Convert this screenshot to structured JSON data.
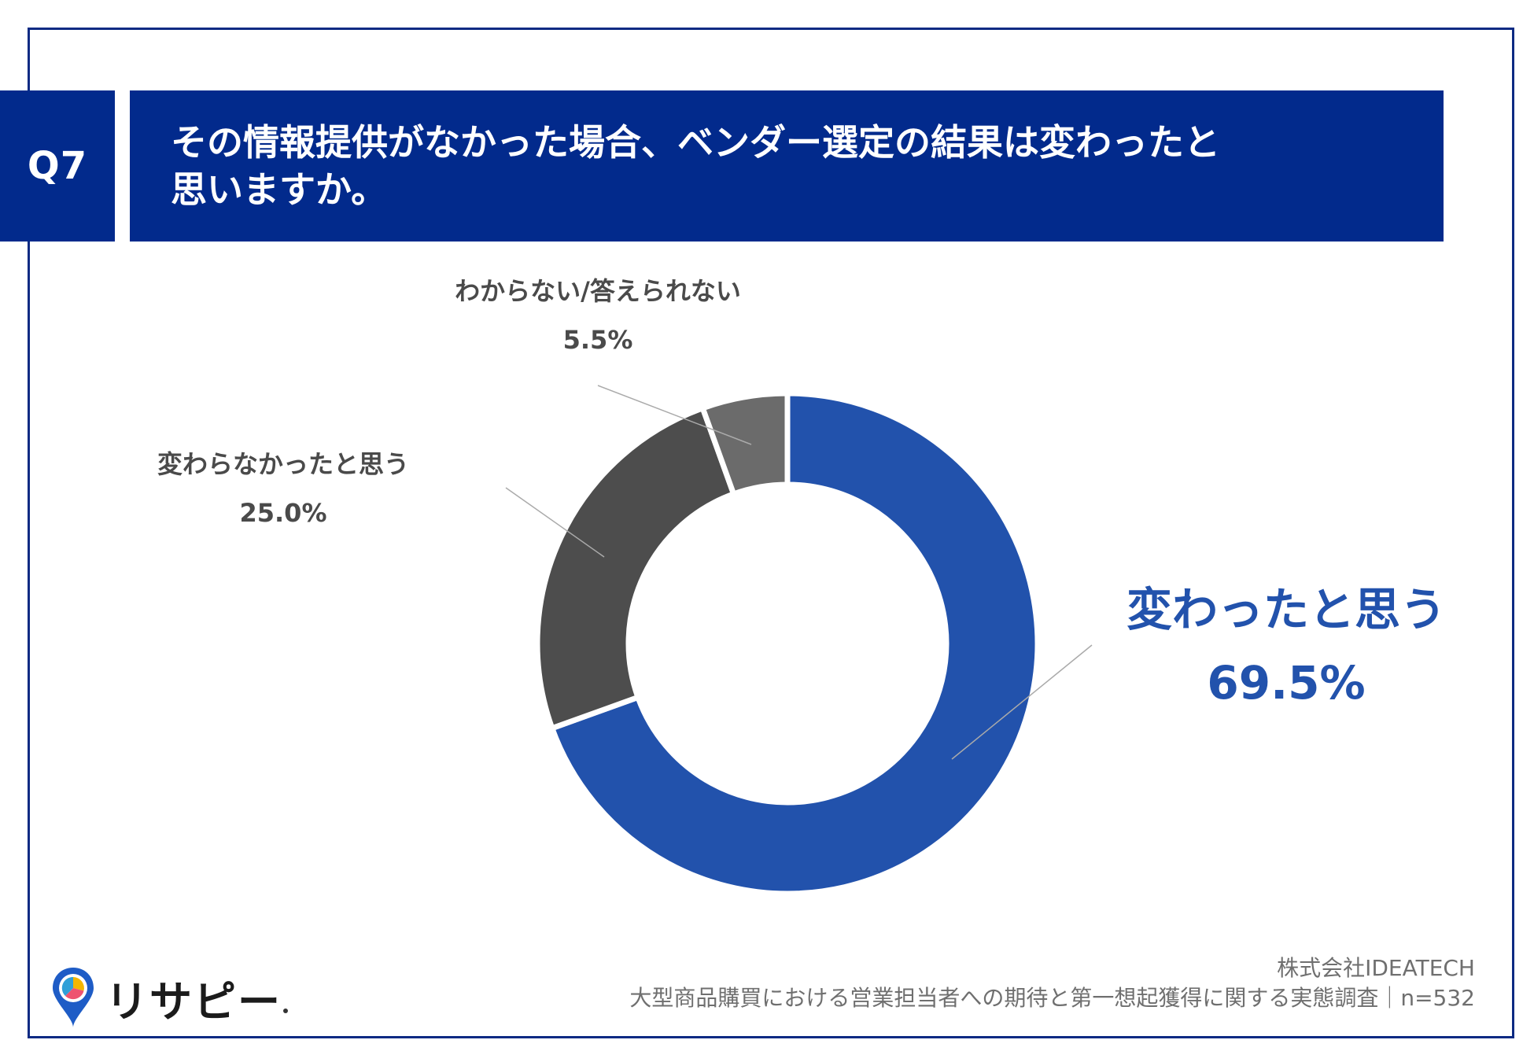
{
  "question": {
    "number": "Q7",
    "title_line1": "その情報提供がなかった場合、ベンダー選定の結果は変わったと",
    "title_line2": "思いますか。"
  },
  "chart_data": {
    "type": "pie",
    "style": "donut",
    "title": "その情報提供がなかった場合、ベンダー選定の結果は変わったと思いますか。",
    "slices": [
      {
        "label": "変わったと思う",
        "value": 69.5,
        "display": "69.5%",
        "color": "#2252ac"
      },
      {
        "label": "変わらなかったと思う",
        "value": 25.0,
        "display": "25.0%",
        "color": "#4d4d4d"
      },
      {
        "label": "わからない/答えられない",
        "value": 5.5,
        "display": "5.5%",
        "color": "#6b6b6b"
      }
    ],
    "start": "12 o'clock",
    "direction": "clockwise",
    "legend": "none"
  },
  "colors": {
    "header_bg": "#022a8c",
    "frame": "#0d2a83",
    "accent": "#2252ac",
    "slice_separator": "#ffffff",
    "leader_line": "#aaaaaa"
  },
  "logo": {
    "icon": "pin-pie-icon",
    "text": "リサピー"
  },
  "footer": {
    "company": "株式会社IDEATECH",
    "survey": "大型商品購買における営業担当者への期待と第一想起獲得に関する実態調査｜n=532"
  }
}
